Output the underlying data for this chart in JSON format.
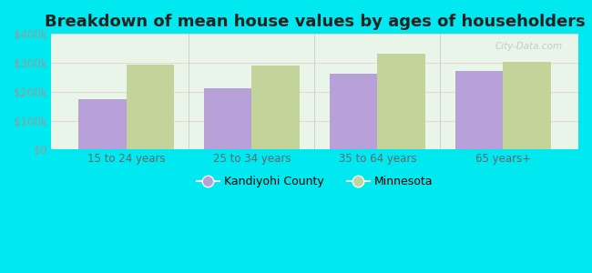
{
  "title": "Breakdown of mean house values by ages of householders",
  "categories": [
    "15 to 24 years",
    "25 to 34 years",
    "35 to 64 years",
    "65 years+"
  ],
  "kandiyohi": [
    175000,
    212000,
    262000,
    272000
  ],
  "minnesota": [
    293000,
    290000,
    332000,
    302000
  ],
  "bar_color_kandiyohi": "#b8a0d8",
  "bar_color_minnesota": "#c2d49a",
  "outer_background": "#00e8f0",
  "ylim": [
    0,
    400000
  ],
  "yticks": [
    0,
    100000,
    200000,
    300000,
    400000
  ],
  "ytick_labels": [
    "$0",
    "$100k",
    "$200k",
    "$300k",
    "$400k"
  ],
  "legend_kandiyohi": "Kandiyohi County",
  "legend_minnesota": "Minnesota",
  "title_fontsize": 13,
  "tick_fontsize": 8.5,
  "legend_fontsize": 9,
  "bar_width": 0.38,
  "watermark": "City-Data.com"
}
